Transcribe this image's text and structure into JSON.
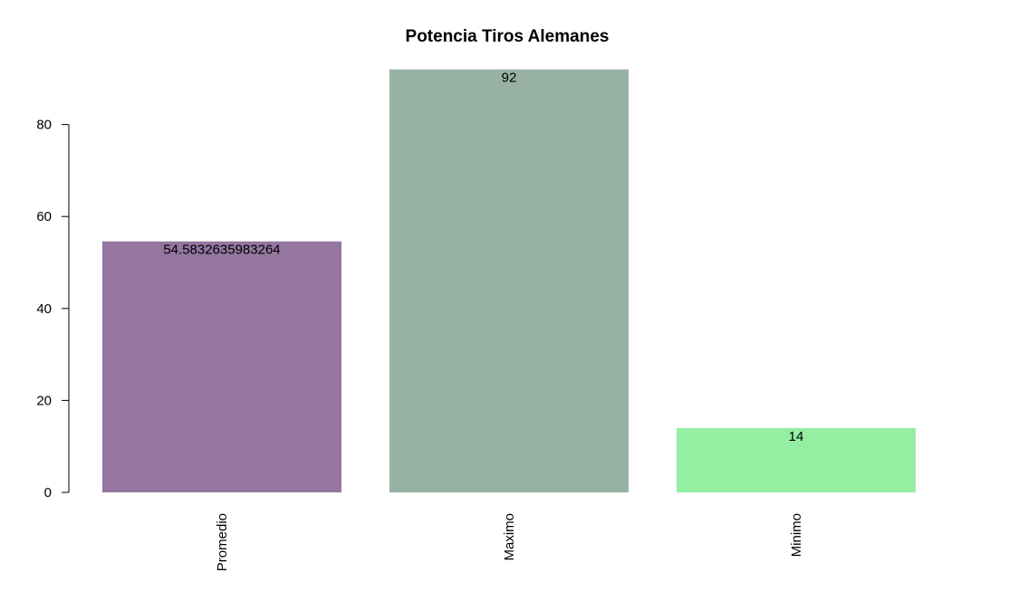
{
  "chart_data": {
    "type": "bar",
    "title": "Potencia Tiros Alemanes",
    "xlabel": "",
    "ylabel": "",
    "categories": [
      "Promedio",
      "Maximo",
      "Minimo"
    ],
    "values": [
      54.5832635983264,
      92,
      14
    ],
    "data_labels": [
      "54.5832635983264",
      "92",
      "14"
    ],
    "colors": [
      "#9476A0",
      "#97B2A3",
      "#94EFA3"
    ],
    "ylim": [
      0,
      92
    ],
    "yticks": [
      0,
      20,
      40,
      60,
      80
    ],
    "ytick_labels": [
      "0",
      "20",
      "40",
      "60",
      "80"
    ],
    "grid": false,
    "legend": "none"
  }
}
